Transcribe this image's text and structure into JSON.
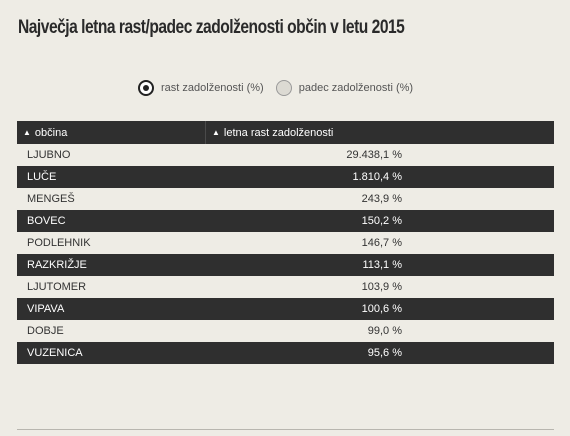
{
  "title": "Največja letna rast/padec zadolženosti občin v letu 2015",
  "radio": {
    "options": [
      {
        "label": "rast zadolženosti (%)",
        "selected": true
      },
      {
        "label": "padec zadolženosti (%)",
        "selected": false
      }
    ]
  },
  "table": {
    "headers": [
      "občina",
      "letna rast zadolženosti"
    ],
    "rows": [
      [
        "LJUBNO",
        "29.438,1 %"
      ],
      [
        "LUČE",
        "1.810,4 %"
      ],
      [
        "MENGEŠ",
        "243,9 %"
      ],
      [
        "BOVEC",
        "150,2 %"
      ],
      [
        "PODLEHNIK",
        "146,7 %"
      ],
      [
        "RAZKRIŽJE",
        "113,1 %"
      ],
      [
        "LJUTOMER",
        "103,9 %"
      ],
      [
        "VIPAVA",
        "100,6 %"
      ],
      [
        "DOBJE",
        "99,0 %"
      ],
      [
        "VUZENICA",
        "95,6 %"
      ]
    ]
  },
  "colors": {
    "dark_row": "#2f2f2f",
    "light_row": "#eeece5"
  }
}
